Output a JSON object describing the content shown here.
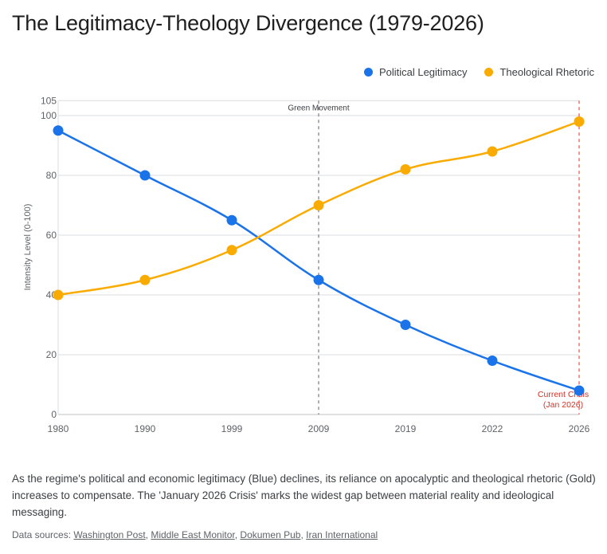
{
  "title": "The Legitimacy-Theology Divergence (1979-2026)",
  "colors": {
    "blue": "#1a73e8",
    "gold": "#f9ab00",
    "crisis": "#d93025",
    "grid": "#dadce0",
    "event_line": "#5f6368"
  },
  "chart_data": {
    "type": "line",
    "title": "The Legitimacy-Theology Divergence (1979-2026)",
    "xlabel": "",
    "ylabel": "Intensity Level (0-100)",
    "categories": [
      "1980",
      "1990",
      "1999",
      "2009",
      "2019",
      "2022",
      "2026"
    ],
    "ylim": [
      0,
      105
    ],
    "yticks": [
      0,
      20,
      40,
      60,
      80,
      100,
      105
    ],
    "grid": true,
    "legend_position": "top-right",
    "series": [
      {
        "name": "Political Legitimacy",
        "color": "#1a73e8",
        "values": [
          95,
          80,
          65,
          45,
          30,
          18,
          8
        ]
      },
      {
        "name": "Theological Rhetoric",
        "color": "#f9ab00",
        "values": [
          40,
          45,
          55,
          70,
          82,
          88,
          98
        ]
      }
    ],
    "annotations": [
      {
        "category": "2009",
        "label": "Green Movement",
        "style": "dashed",
        "color": "#5f6368",
        "label_position": "top"
      },
      {
        "category": "2026",
        "label_lines": [
          "Current Crisis",
          "(Jan 2026)"
        ],
        "style": "dashed",
        "color": "#d93025",
        "label_position": "bottom-left"
      }
    ]
  },
  "caption": "As the regime's political and economic legitimacy (Blue) declines, its reliance on apocalyptic and theological rhetoric (Gold) increases to compensate. The 'January 2026 Crisis' marks the widest gap between material reality and ideological messaging.",
  "sources": {
    "label": "Data sources:",
    "links": [
      "Washington Post",
      "Middle East Monitor",
      "Dokumen Pub",
      "Iran International"
    ]
  }
}
